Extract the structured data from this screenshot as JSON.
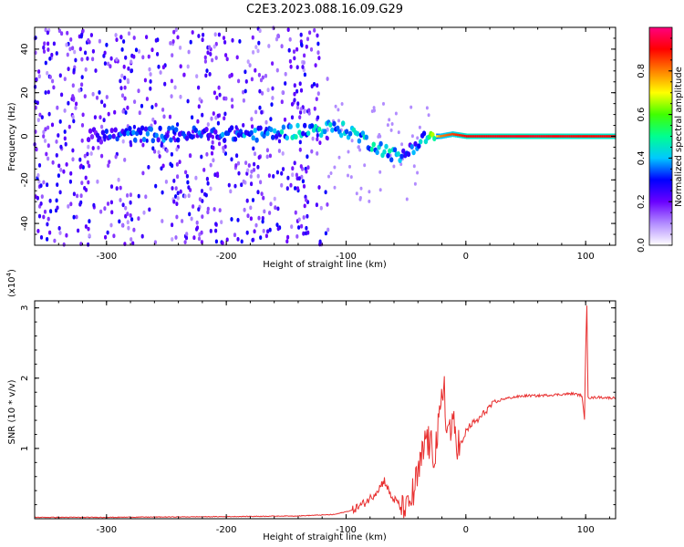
{
  "title": "C2E3.2023.088.16.09.G29",
  "colors": {
    "signal": "#e83030",
    "scatter": "#7a1cf0",
    "colorbar": [
      "#ffffff",
      "#b28cff",
      "#6a00ff",
      "#0000ff",
      "#00c8ff",
      "#00ff90",
      "#40ff00",
      "#ffff00",
      "#ff8000",
      "#ff0000",
      "#ff0080"
    ]
  },
  "chart_data": [
    {
      "type": "heatmap",
      "xlabel": "Height of straight line (km)",
      "ylabel": "Frequency (Hz)",
      "xlim": [
        -360,
        125
      ],
      "ylim": [
        -50,
        50
      ],
      "x_ticks": [
        -300,
        -200,
        -100,
        0,
        100
      ],
      "x_tick_labels": [
        "-300",
        "-200",
        "-100",
        "0",
        "100"
      ],
      "y_ticks": [
        -40,
        -20,
        0,
        20,
        40
      ],
      "y_tick_labels": [
        "-40",
        "-20",
        "0",
        "20",
        "40"
      ],
      "colorbar": {
        "label": "Normalized spectral amplitude",
        "range": [
          0,
          1
        ],
        "ticks": [
          0.0,
          0.2,
          0.4,
          0.6,
          0.8
        ],
        "tick_labels": [
          "0.0",
          "0.2",
          "0.4",
          "0.6",
          "0.8"
        ]
      },
      "noise_region": {
        "x_from": -360,
        "x_to": -115,
        "freq_range": [
          -50,
          50
        ]
      },
      "ridge": [
        {
          "x": -315,
          "y": 0,
          "a": 0.25
        },
        {
          "x": -285,
          "y": 1,
          "a": 0.35
        },
        {
          "x": -215,
          "y": 1,
          "a": 0.35
        },
        {
          "x": -170,
          "y": 1,
          "a": 0.4
        },
        {
          "x": -130,
          "y": 3,
          "a": 0.45
        },
        {
          "x": -110,
          "y": 4,
          "a": 0.5
        },
        {
          "x": -95,
          "y": 2,
          "a": 0.45
        },
        {
          "x": -80,
          "y": -3,
          "a": 0.45
        },
        {
          "x": -65,
          "y": -7,
          "a": 0.45
        },
        {
          "x": -55,
          "y": -10,
          "a": 0.4
        },
        {
          "x": -45,
          "y": -5,
          "a": 0.35
        },
        {
          "x": -32,
          "y": 0,
          "a": 0.5
        },
        {
          "x": -22,
          "y": 0,
          "a": 0.8
        },
        {
          "x": -12,
          "y": 1,
          "a": 0.85
        },
        {
          "x": 0,
          "y": 0,
          "a": 0.9
        },
        {
          "x": 50,
          "y": 0,
          "a": 0.92
        },
        {
          "x": 95,
          "y": 0,
          "a": 0.9
        },
        {
          "x": 125,
          "y": 0,
          "a": 0.9
        }
      ]
    },
    {
      "type": "line",
      "xlabel": "Height of straight line (km)",
      "ylabel": "SNR (10 * v/v)",
      "scale_label": "(x10",
      "scale_exp": "4",
      "xlim": [
        -360,
        125
      ],
      "ylim": [
        0,
        3.1
      ],
      "x_ticks": [
        -300,
        -200,
        -100,
        0,
        100
      ],
      "x_tick_labels": [
        "-300",
        "-200",
        "-100",
        "0",
        "100"
      ],
      "y_ticks": [
        1,
        2,
        3
      ],
      "y_tick_labels": [
        "1",
        "2",
        "3"
      ],
      "series": [
        {
          "x": [
            -360,
            -300,
            -200,
            -140,
            -110,
            -95,
            -85,
            -78,
            -72,
            -68,
            -65,
            -62,
            -58,
            -55,
            -50,
            -45,
            -40,
            -36,
            -33,
            -30,
            -26,
            -22,
            -18,
            -16,
            -14,
            -12,
            -10,
            -6,
            -2,
            0,
            5,
            10,
            15,
            20,
            25,
            30,
            40,
            50,
            60,
            70,
            80,
            90,
            97,
            99,
            100,
            101,
            102,
            103,
            105,
            110,
            120,
            125
          ],
          "y": [
            0.02,
            0.02,
            0.03,
            0.04,
            0.06,
            0.12,
            0.22,
            0.32,
            0.45,
            0.55,
            0.42,
            0.3,
            0.25,
            0.18,
            0.15,
            0.28,
            0.6,
            0.9,
            1.2,
            1.0,
            0.95,
            1.35,
            2.0,
            1.1,
            1.4,
            1.2,
            1.3,
            1.05,
            1.1,
            1.25,
            1.35,
            1.4,
            1.5,
            1.6,
            1.65,
            1.7,
            1.73,
            1.75,
            1.75,
            1.76,
            1.77,
            1.78,
            1.75,
            1.4,
            2.4,
            3.05,
            1.75,
            1.72,
            1.72,
            1.73,
            1.72,
            1.72
          ]
        }
      ]
    }
  ]
}
